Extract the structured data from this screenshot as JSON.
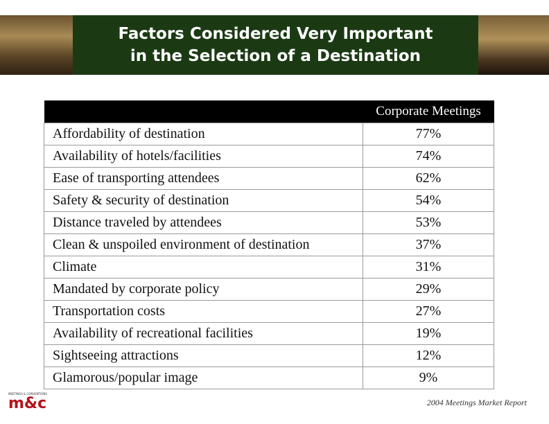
{
  "header": {
    "title_lines": [
      "Factors Considered Very Important",
      "in the Selection of a Destination"
    ]
  },
  "table": {
    "column_header": "Corporate Meetings",
    "rows": [
      [
        "Affordability of destination",
        "77%"
      ],
      [
        "Availability of hotels/facilities",
        "74%"
      ],
      [
        "Ease of transporting attendees",
        "62%"
      ],
      [
        "Safety & security of destination",
        "54%"
      ],
      [
        "Distance traveled by attendees",
        "53%"
      ],
      [
        "Clean & unspoiled environment of destination",
        "37%"
      ],
      [
        "Climate",
        "31%"
      ],
      [
        "Mandated by corporate policy",
        "29%"
      ],
      [
        "Transportation costs",
        "27%"
      ],
      [
        "Availability of recreational facilities",
        "19%"
      ],
      [
        "Sightseeing attractions",
        "12%"
      ],
      [
        "Glamorous/popular image",
        "9%"
      ]
    ]
  },
  "footer": {
    "logo_caption": "MEETINGS & CONVENTIONS",
    "logo": "m&c",
    "source": "2004 Meetings Market Report"
  }
}
